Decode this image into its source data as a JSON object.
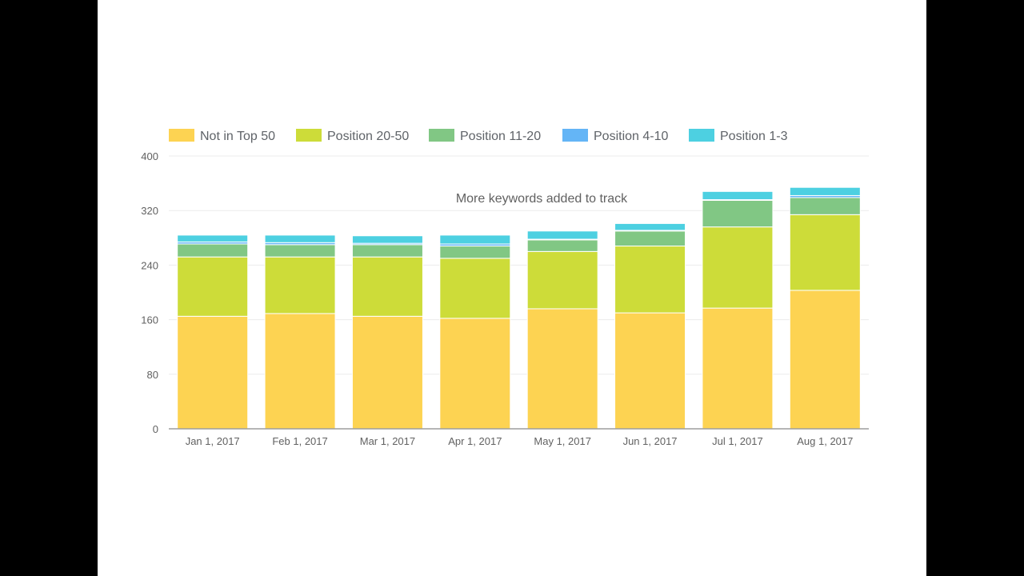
{
  "chart_data": {
    "type": "bar",
    "stacked": true,
    "categories": [
      "Jan 1, 2017",
      "Feb 1, 2017",
      "Mar 1, 2017",
      "Apr 1, 2017",
      "May 1, 2017",
      "Jun 1, 2017",
      "Jul 1, 2017",
      "Aug 1, 2017"
    ],
    "series": [
      {
        "name": "Not in Top 50",
        "color": "#FDD352",
        "values": [
          165,
          169,
          165,
          162,
          176,
          170,
          177,
          203
        ]
      },
      {
        "name": "Position 20-50",
        "color": "#CDDC39",
        "values": [
          87,
          83,
          87,
          88,
          84,
          98,
          119,
          111
        ]
      },
      {
        "name": "Position 11-20",
        "color": "#81C784",
        "values": [
          19,
          18,
          18,
          18,
          17,
          22,
          39,
          25
        ]
      },
      {
        "name": "Position 4-10",
        "color": "#64B5F6",
        "values": [
          3,
          3,
          2,
          3,
          1,
          1,
          1,
          3
        ]
      },
      {
        "name": "Position 1-3",
        "color": "#4DD0E1",
        "values": [
          10,
          11,
          11,
          13,
          12,
          10,
          12,
          12
        ]
      }
    ],
    "xlabel": "",
    "ylabel": "",
    "ylim": [
      0,
      400
    ],
    "yticks": [
      0,
      80,
      160,
      240,
      320,
      400
    ],
    "grid": true,
    "legend_position": "top-left",
    "annotation": "More keywords added to track"
  }
}
